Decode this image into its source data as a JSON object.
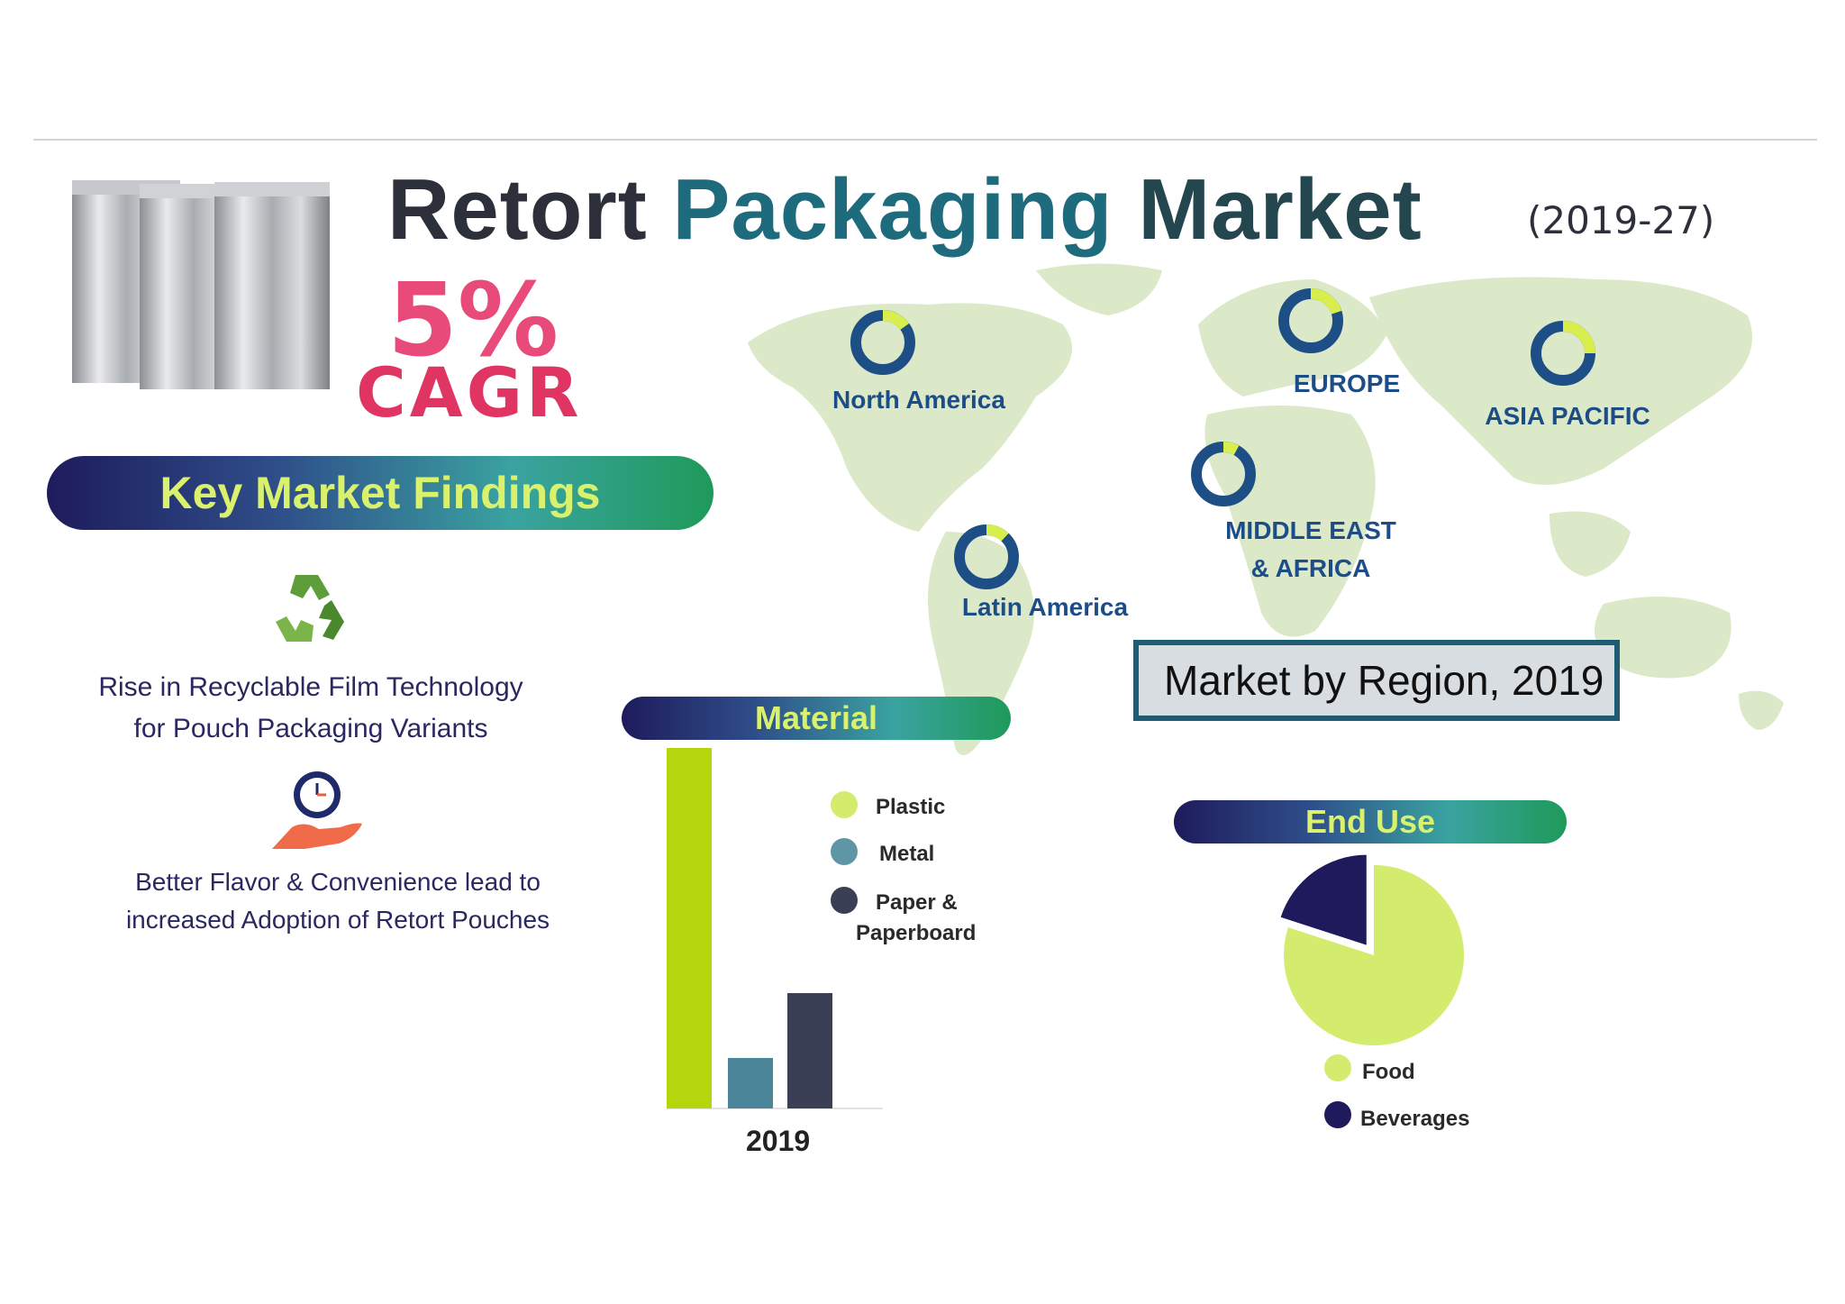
{
  "header": {
    "title_word1": "Retort",
    "title_word2": "Packaging",
    "title_word3": "Market",
    "years": "(2019-27)"
  },
  "cagr": {
    "value": "5%",
    "label": "CAGR"
  },
  "findings": {
    "heading": "Key Market Findings",
    "item1_line1": "Rise in Recyclable  Film Technology",
    "item1_line2": "for Pouch Packaging  Variants",
    "item2_line1": "Better Flavor  & Convenience  lead to",
    "item2_line2": "increased  Adoption of Retort  Pouches"
  },
  "map": {
    "caption": "Market by Region, 2019",
    "regions": {
      "north_america": "North America",
      "europe": "EUROPE",
      "asia_pacific": "ASIA PACIFIC",
      "mea_line1": "MIDDLE EAST",
      "mea_line2": "& AFRICA",
      "latin_america": "Latin America"
    }
  },
  "colors": {
    "plastic": "#b5d60d",
    "metal": "#4b8599",
    "paper": "#3b3f55",
    "food": "#d4ec6e",
    "beverages": "#1f1a5c",
    "ring_dark": "#1d4f86",
    "ring_light": "#d7ee4c",
    "map": "#dce9c8"
  },
  "chart_data": [
    {
      "type": "bar",
      "title": "Material",
      "categories": [
        "2019"
      ],
      "series": [
        {
          "name": "Plastic",
          "values": [
            100
          ]
        },
        {
          "name": "Metal",
          "values": [
            14
          ]
        },
        {
          "name": "Paper & Paperboard",
          "values": [
            32
          ]
        }
      ],
      "ylim": [
        0,
        100
      ],
      "grid": false,
      "legend": "right",
      "legend_line1": [
        "Plastic",
        "Metal",
        "Paper &"
      ],
      "legend_line2": [
        "",
        "",
        "Paperboard"
      ]
    },
    {
      "type": "pie",
      "title": "End Use",
      "labels": [
        "Food",
        "Beverages"
      ],
      "values": [
        80,
        20
      ],
      "legend": "bottom"
    },
    {
      "type": "donut",
      "title": "Market by Region, 2019",
      "regions": [
        "North America",
        "EUROPE",
        "ASIA PACIFIC",
        "MIDDLE EAST & AFRICA",
        "Latin America"
      ],
      "highlight_fraction": [
        0.15,
        0.2,
        0.25,
        0.08,
        0.12
      ]
    }
  ]
}
